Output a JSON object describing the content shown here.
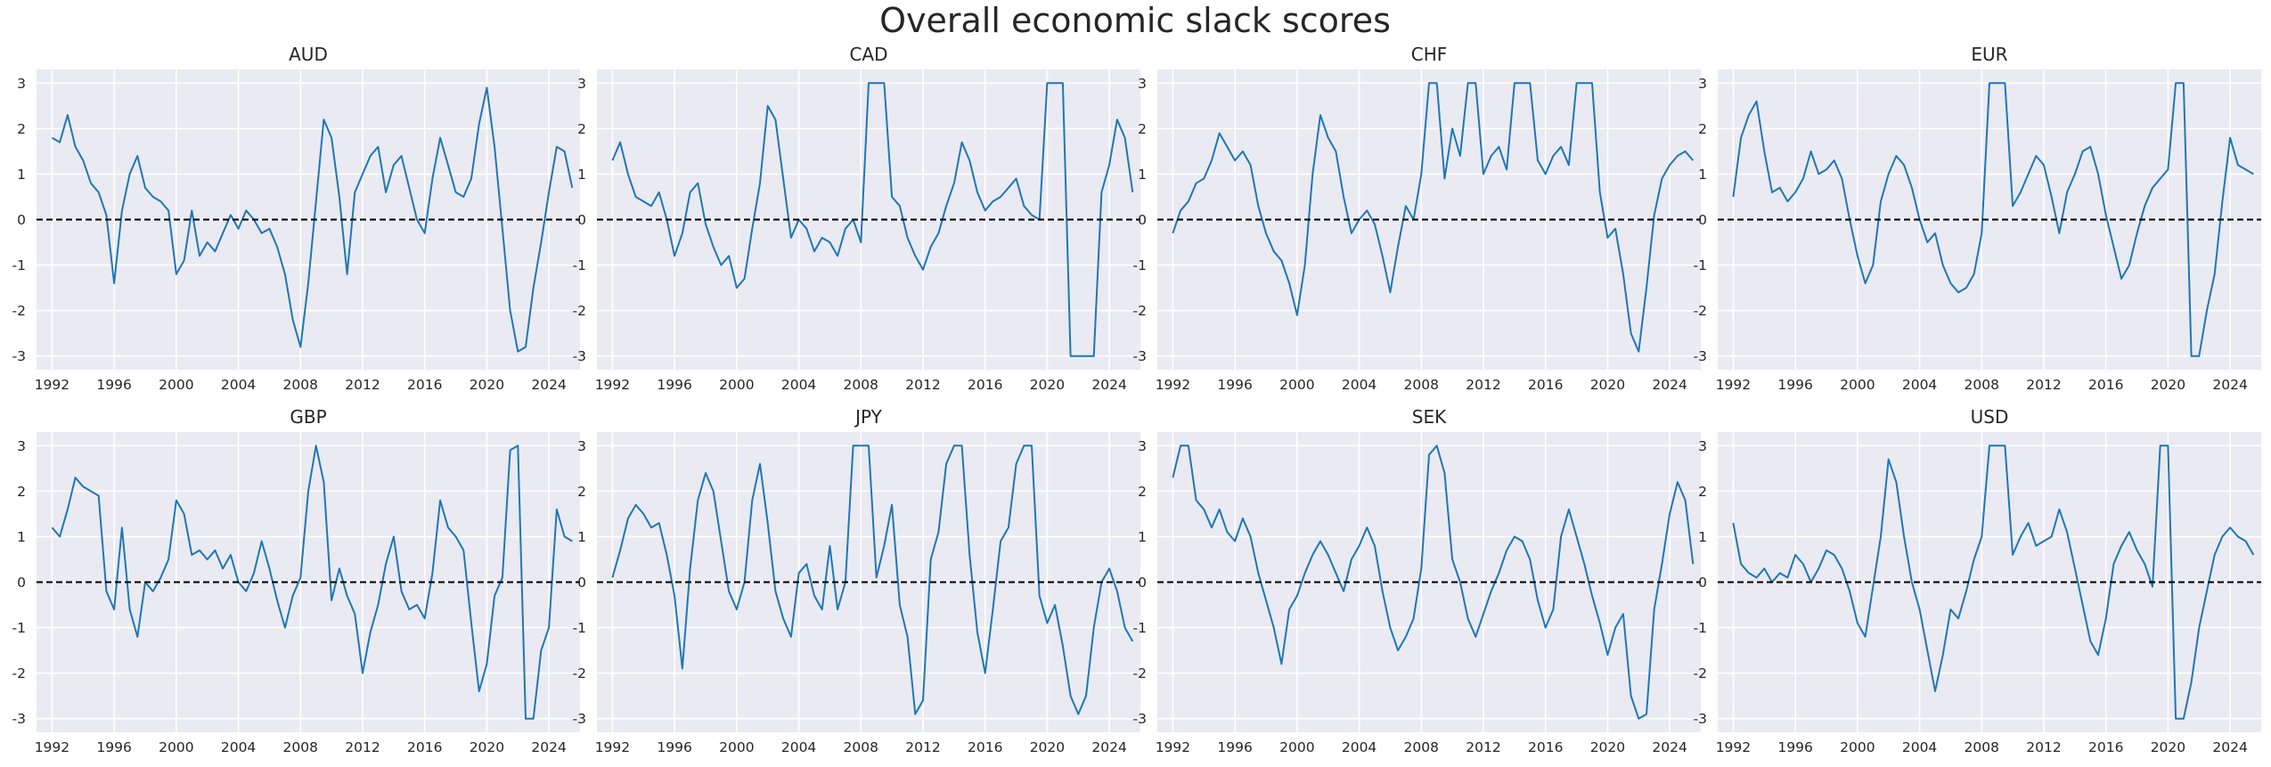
{
  "chart_data": {
    "type": "line",
    "title": "Overall economic slack scores",
    "layout": "2x4 small multiples, shared y range",
    "ylim": [
      -3.3,
      3.3
    ],
    "yticks": [
      -3,
      -2,
      -1,
      0,
      1,
      2,
      3
    ],
    "xlim": [
      1991.0,
      2026.0
    ],
    "xticks": [
      1992,
      1996,
      2000,
      2004,
      2008,
      2012,
      2016,
      2020,
      2024
    ],
    "grid": true,
    "reference_line": {
      "y": 0,
      "style": "dashed",
      "color": "#000000"
    },
    "line_color": "#1f77b4",
    "panel_background": "#eaeaf2",
    "panels": [
      {
        "title": "AUD",
        "x": [
          1992.0,
          1992.5,
          1993.0,
          1993.5,
          1994.0,
          1994.5,
          1995.0,
          1995.5,
          1996.0,
          1996.5,
          1997.0,
          1997.5,
          1998.0,
          1998.5,
          1999.0,
          1999.5,
          2000.0,
          2000.5,
          2001.0,
          2001.5,
          2002.0,
          2002.5,
          2003.0,
          2003.5,
          2004.0,
          2004.5,
          2005.0,
          2005.5,
          2006.0,
          2006.5,
          2007.0,
          2007.5,
          2008.0,
          2008.5,
          2009.0,
          2009.5,
          2010.0,
          2010.5,
          2011.0,
          2011.5,
          2012.0,
          2012.5,
          2013.0,
          2013.5,
          2014.0,
          2014.5,
          2015.0,
          2015.5,
          2016.0,
          2016.5,
          2017.0,
          2017.5,
          2018.0,
          2018.5,
          2019.0,
          2019.5,
          2020.0,
          2020.5,
          2021.0,
          2021.5,
          2022.0,
          2022.5,
          2023.0,
          2023.5,
          2024.0,
          2024.5,
          2025.0,
          2025.5
        ],
        "y": [
          1.8,
          1.7,
          2.3,
          1.6,
          1.3,
          0.8,
          0.6,
          0.1,
          -1.4,
          0.2,
          1.0,
          1.4,
          0.7,
          0.5,
          0.4,
          0.2,
          -1.2,
          -0.9,
          0.2,
          -0.8,
          -0.5,
          -0.7,
          -0.3,
          0.1,
          -0.2,
          0.2,
          0.0,
          -0.3,
          -0.2,
          -0.6,
          -1.2,
          -2.2,
          -2.8,
          -1.4,
          0.4,
          2.2,
          1.8,
          0.5,
          -1.2,
          0.6,
          1.0,
          1.4,
          1.6,
          0.6,
          1.2,
          1.4,
          0.7,
          0.0,
          -0.3,
          0.9,
          1.8,
          1.2,
          0.6,
          0.5,
          0.9,
          2.1,
          2.9,
          1.6,
          -0.2,
          -2.0,
          -2.9,
          -2.8,
          -1.5,
          -0.5,
          0.6,
          1.6,
          1.5,
          0.7
        ]
      },
      {
        "title": "CAD",
        "x": [
          1992.0,
          1992.5,
          1993.0,
          1993.5,
          1994.0,
          1994.5,
          1995.0,
          1995.5,
          1996.0,
          1996.5,
          1997.0,
          1997.5,
          1998.0,
          1998.5,
          1999.0,
          1999.5,
          2000.0,
          2000.5,
          2001.0,
          2001.5,
          2002.0,
          2002.5,
          2003.0,
          2003.5,
          2004.0,
          2004.5,
          2005.0,
          2005.5,
          2006.0,
          2006.5,
          2007.0,
          2007.5,
          2008.0,
          2008.5,
          2009.0,
          2009.5,
          2010.0,
          2010.5,
          2011.0,
          2011.5,
          2012.0,
          2012.5,
          2013.0,
          2013.5,
          2014.0,
          2014.5,
          2015.0,
          2015.5,
          2016.0,
          2016.5,
          2017.0,
          2017.5,
          2018.0,
          2018.5,
          2019.0,
          2019.5,
          2020.0,
          2020.5,
          2021.0,
          2021.5,
          2022.0,
          2022.5,
          2023.0,
          2023.5,
          2024.0,
          2024.5,
          2025.0,
          2025.5
        ],
        "y": [
          1.3,
          1.7,
          1.0,
          0.5,
          0.4,
          0.3,
          0.6,
          0.0,
          -0.8,
          -0.3,
          0.6,
          0.8,
          -0.1,
          -0.6,
          -1.0,
          -0.8,
          -1.5,
          -1.3,
          -0.2,
          0.8,
          2.5,
          2.2,
          0.9,
          -0.4,
          0.0,
          -0.2,
          -0.7,
          -0.4,
          -0.5,
          -0.8,
          -0.2,
          0.0,
          -0.5,
          3.0,
          3.0,
          3.0,
          0.5,
          0.3,
          -0.4,
          -0.8,
          -1.1,
          -0.6,
          -0.3,
          0.3,
          0.8,
          1.7,
          1.3,
          0.6,
          0.2,
          0.4,
          0.5,
          0.7,
          0.9,
          0.3,
          0.1,
          0.0,
          3.0,
          3.0,
          3.0,
          -3.0,
          -3.0,
          -3.0,
          -3.0,
          0.6,
          1.2,
          2.2,
          1.8,
          0.6
        ]
      },
      {
        "title": "CHF",
        "x": [
          1992.0,
          1992.5,
          1993.0,
          1993.5,
          1994.0,
          1994.5,
          1995.0,
          1995.5,
          1996.0,
          1996.5,
          1997.0,
          1997.5,
          1998.0,
          1998.5,
          1999.0,
          1999.5,
          2000.0,
          2000.5,
          2001.0,
          2001.5,
          2002.0,
          2002.5,
          2003.0,
          2003.5,
          2004.0,
          2004.5,
          2005.0,
          2005.5,
          2006.0,
          2006.5,
          2007.0,
          2007.5,
          2008.0,
          2008.5,
          2009.0,
          2009.5,
          2010.0,
          2010.5,
          2011.0,
          2011.5,
          2012.0,
          2012.5,
          2013.0,
          2013.5,
          2014.0,
          2014.5,
          2015.0,
          2015.5,
          2016.0,
          2016.5,
          2017.0,
          2017.5,
          2018.0,
          2018.5,
          2019.0,
          2019.5,
          2020.0,
          2020.5,
          2021.0,
          2021.5,
          2022.0,
          2022.5,
          2023.0,
          2023.5,
          2024.0,
          2024.5,
          2025.0,
          2025.5
        ],
        "y": [
          -0.3,
          0.2,
          0.4,
          0.8,
          0.9,
          1.3,
          1.9,
          1.6,
          1.3,
          1.5,
          1.2,
          0.3,
          -0.3,
          -0.7,
          -0.9,
          -1.4,
          -2.1,
          -1.0,
          1.0,
          2.3,
          1.8,
          1.5,
          0.5,
          -0.3,
          0.0,
          0.2,
          -0.1,
          -0.8,
          -1.6,
          -0.6,
          0.3,
          0.0,
          1.0,
          3.0,
          3.0,
          0.9,
          2.0,
          1.4,
          3.0,
          3.0,
          1.0,
          1.4,
          1.6,
          1.1,
          3.0,
          3.0,
          3.0,
          1.3,
          1.0,
          1.4,
          1.6,
          1.2,
          3.0,
          3.0,
          3.0,
          0.6,
          -0.4,
          -0.2,
          -1.2,
          -2.5,
          -2.9,
          -1.5,
          0.1,
          0.9,
          1.2,
          1.4,
          1.5,
          1.3
        ]
      },
      {
        "title": "EUR",
        "x": [
          1992.0,
          1992.5,
          1993.0,
          1993.5,
          1994.0,
          1994.5,
          1995.0,
          1995.5,
          1996.0,
          1996.5,
          1997.0,
          1997.5,
          1998.0,
          1998.5,
          1999.0,
          1999.5,
          2000.0,
          2000.5,
          2001.0,
          2001.5,
          2002.0,
          2002.5,
          2003.0,
          2003.5,
          2004.0,
          2004.5,
          2005.0,
          2005.5,
          2006.0,
          2006.5,
          2007.0,
          2007.5,
          2008.0,
          2008.5,
          2009.0,
          2009.5,
          2010.0,
          2010.5,
          2011.0,
          2011.5,
          2012.0,
          2012.5,
          2013.0,
          2013.5,
          2014.0,
          2014.5,
          2015.0,
          2015.5,
          2016.0,
          2016.5,
          2017.0,
          2017.5,
          2018.0,
          2018.5,
          2019.0,
          2019.5,
          2020.0,
          2020.5,
          2021.0,
          2021.5,
          2022.0,
          2022.5,
          2023.0,
          2023.5,
          2024.0,
          2024.5,
          2025.0,
          2025.5
        ],
        "y": [
          0.5,
          1.8,
          2.3,
          2.6,
          1.5,
          0.6,
          0.7,
          0.4,
          0.6,
          0.9,
          1.5,
          1.0,
          1.1,
          1.3,
          0.9,
          0.0,
          -0.8,
          -1.4,
          -1.0,
          0.4,
          1.0,
          1.4,
          1.2,
          0.7,
          0.0,
          -0.5,
          -0.3,
          -1.0,
          -1.4,
          -1.6,
          -1.5,
          -1.2,
          -0.3,
          3.0,
          3.0,
          3.0,
          0.3,
          0.6,
          1.0,
          1.4,
          1.2,
          0.5,
          -0.3,
          0.6,
          1.0,
          1.5,
          1.6,
          1.0,
          0.1,
          -0.6,
          -1.3,
          -1.0,
          -0.3,
          0.3,
          0.7,
          0.9,
          1.1,
          3.0,
          3.0,
          -3.0,
          -3.0,
          -2.0,
          -1.2,
          0.4,
          1.8,
          1.2,
          1.1,
          1.0
        ]
      },
      {
        "title": "GBP",
        "x": [
          1992.0,
          1992.5,
          1993.0,
          1993.5,
          1994.0,
          1994.5,
          1995.0,
          1995.5,
          1996.0,
          1996.5,
          1997.0,
          1997.5,
          1998.0,
          1998.5,
          1999.0,
          1999.5,
          2000.0,
          2000.5,
          2001.0,
          2001.5,
          2002.0,
          2002.5,
          2003.0,
          2003.5,
          2004.0,
          2004.5,
          2005.0,
          2005.5,
          2006.0,
          2006.5,
          2007.0,
          2007.5,
          2008.0,
          2008.5,
          2009.0,
          2009.5,
          2010.0,
          2010.5,
          2011.0,
          2011.5,
          2012.0,
          2012.5,
          2013.0,
          2013.5,
          2014.0,
          2014.5,
          2015.0,
          2015.5,
          2016.0,
          2016.5,
          2017.0,
          2017.5,
          2018.0,
          2018.5,
          2019.0,
          2019.5,
          2020.0,
          2020.5,
          2021.0,
          2021.5,
          2022.0,
          2022.5,
          2023.0,
          2023.5,
          2024.0,
          2024.5,
          2025.0,
          2025.5
        ],
        "y": [
          1.2,
          1.0,
          1.6,
          2.3,
          2.1,
          2.0,
          1.9,
          -0.2,
          -0.6,
          1.2,
          -0.6,
          -1.2,
          0.0,
          -0.2,
          0.1,
          0.5,
          1.8,
          1.5,
          0.6,
          0.7,
          0.5,
          0.7,
          0.3,
          0.6,
          0.0,
          -0.2,
          0.2,
          0.9,
          0.3,
          -0.4,
          -1.0,
          -0.3,
          0.1,
          2.0,
          3.0,
          2.2,
          -0.4,
          0.3,
          -0.3,
          -0.7,
          -2.0,
          -1.1,
          -0.5,
          0.4,
          1.0,
          -0.2,
          -0.6,
          -0.5,
          -0.8,
          0.2,
          1.8,
          1.2,
          1.0,
          0.7,
          -0.9,
          -2.4,
          -1.8,
          -0.3,
          0.1,
          2.9,
          3.0,
          -3.0,
          -3.0,
          -1.5,
          -1.0,
          1.6,
          1.0,
          0.9
        ]
      },
      {
        "title": "JPY",
        "x": [
          1992.0,
          1992.5,
          1993.0,
          1993.5,
          1994.0,
          1994.5,
          1995.0,
          1995.5,
          1996.0,
          1996.5,
          1997.0,
          1997.5,
          1998.0,
          1998.5,
          1999.0,
          1999.5,
          2000.0,
          2000.5,
          2001.0,
          2001.5,
          2002.0,
          2002.5,
          2003.0,
          2003.5,
          2004.0,
          2004.5,
          2005.0,
          2005.5,
          2006.0,
          2006.5,
          2007.0,
          2007.5,
          2008.0,
          2008.5,
          2009.0,
          2009.5,
          2010.0,
          2010.5,
          2011.0,
          2011.5,
          2012.0,
          2012.5,
          2013.0,
          2013.5,
          2014.0,
          2014.5,
          2015.0,
          2015.5,
          2016.0,
          2016.5,
          2017.0,
          2017.5,
          2018.0,
          2018.5,
          2019.0,
          2019.5,
          2020.0,
          2020.5,
          2021.0,
          2021.5,
          2022.0,
          2022.5,
          2023.0,
          2023.5,
          2024.0,
          2024.5,
          2025.0,
          2025.5
        ],
        "y": [
          0.1,
          0.7,
          1.4,
          1.7,
          1.5,
          1.2,
          1.3,
          0.6,
          -0.3,
          -1.9,
          0.3,
          1.8,
          2.4,
          2.0,
          0.9,
          -0.2,
          -0.6,
          0.0,
          1.8,
          2.6,
          1.3,
          -0.2,
          -0.8,
          -1.2,
          0.2,
          0.4,
          -0.3,
          -0.6,
          0.8,
          -0.6,
          0.0,
          3.0,
          3.0,
          3.0,
          0.1,
          0.8,
          1.7,
          -0.5,
          -1.2,
          -2.9,
          -2.6,
          0.5,
          1.1,
          2.6,
          3.0,
          3.0,
          0.6,
          -1.1,
          -2.0,
          -0.6,
          0.9,
          1.2,
          2.6,
          3.0,
          3.0,
          -0.3,
          -0.9,
          -0.5,
          -1.4,
          -2.5,
          -2.9,
          -2.5,
          -1.0,
          0.0,
          0.3,
          -0.2,
          -1.0,
          -1.3
        ]
      },
      {
        "title": "SEK",
        "x": [
          1992.0,
          1992.5,
          1993.0,
          1993.5,
          1994.0,
          1994.5,
          1995.0,
          1995.5,
          1996.0,
          1996.5,
          1997.0,
          1997.5,
          1998.0,
          1998.5,
          1999.0,
          1999.5,
          2000.0,
          2000.5,
          2001.0,
          2001.5,
          2002.0,
          2002.5,
          2003.0,
          2003.5,
          2004.0,
          2004.5,
          2005.0,
          2005.5,
          2006.0,
          2006.5,
          2007.0,
          2007.5,
          2008.0,
          2008.5,
          2009.0,
          2009.5,
          2010.0,
          2010.5,
          2011.0,
          2011.5,
          2012.0,
          2012.5,
          2013.0,
          2013.5,
          2014.0,
          2014.5,
          2015.0,
          2015.5,
          2016.0,
          2016.5,
          2017.0,
          2017.5,
          2018.0,
          2018.5,
          2019.0,
          2019.5,
          2020.0,
          2020.5,
          2021.0,
          2021.5,
          2022.0,
          2022.5,
          2023.0,
          2023.5,
          2024.0,
          2024.5,
          2025.0,
          2025.5
        ],
        "y": [
          2.3,
          3.0,
          3.0,
          1.8,
          1.6,
          1.2,
          1.6,
          1.1,
          0.9,
          1.4,
          1.0,
          0.2,
          -0.4,
          -1.0,
          -1.8,
          -0.6,
          -0.3,
          0.2,
          0.6,
          0.9,
          0.6,
          0.2,
          -0.2,
          0.5,
          0.8,
          1.2,
          0.8,
          -0.2,
          -1.0,
          -1.5,
          -1.2,
          -0.8,
          0.3,
          2.8,
          3.0,
          2.4,
          0.5,
          0.0,
          -0.8,
          -1.2,
          -0.7,
          -0.2,
          0.2,
          0.7,
          1.0,
          0.9,
          0.5,
          -0.4,
          -1.0,
          -0.6,
          1.0,
          1.6,
          1.0,
          0.4,
          -0.3,
          -0.9,
          -1.6,
          -1.0,
          -0.7,
          -2.5,
          -3.0,
          -2.9,
          -0.6,
          0.4,
          1.5,
          2.2,
          1.8,
          0.4
        ]
      },
      {
        "title": "USD",
        "x": [
          1992.0,
          1992.5,
          1993.0,
          1993.5,
          1994.0,
          1994.5,
          1995.0,
          1995.5,
          1996.0,
          1996.5,
          1997.0,
          1997.5,
          1998.0,
          1998.5,
          1999.0,
          1999.5,
          2000.0,
          2000.5,
          2001.0,
          2001.5,
          2002.0,
          2002.5,
          2003.0,
          2003.5,
          2004.0,
          2004.5,
          2005.0,
          2005.5,
          2006.0,
          2006.5,
          2007.0,
          2007.5,
          2008.0,
          2008.5,
          2009.0,
          2009.5,
          2010.0,
          2010.5,
          2011.0,
          2011.5,
          2012.0,
          2012.5,
          2013.0,
          2013.5,
          2014.0,
          2014.5,
          2015.0,
          2015.5,
          2016.0,
          2016.5,
          2017.0,
          2017.5,
          2018.0,
          2018.5,
          2019.0,
          2019.5,
          2020.0,
          2020.5,
          2021.0,
          2021.5,
          2022.0,
          2022.5,
          2023.0,
          2023.5,
          2024.0,
          2024.5,
          2025.0,
          2025.5
        ],
        "y": [
          1.3,
          0.4,
          0.2,
          0.1,
          0.3,
          0.0,
          0.2,
          0.1,
          0.6,
          0.4,
          0.0,
          0.3,
          0.7,
          0.6,
          0.3,
          -0.2,
          -0.9,
          -1.2,
          -0.1,
          1.0,
          2.7,
          2.2,
          1.0,
          0.0,
          -0.6,
          -1.5,
          -2.4,
          -1.6,
          -0.6,
          -0.8,
          -0.2,
          0.5,
          1.0,
          3.0,
          3.0,
          3.0,
          0.6,
          1.0,
          1.3,
          0.8,
          0.9,
          1.0,
          1.6,
          1.1,
          0.3,
          -0.5,
          -1.3,
          -1.6,
          -0.8,
          0.4,
          0.8,
          1.1,
          0.7,
          0.4,
          -0.1,
          3.0,
          3.0,
          -3.0,
          -3.0,
          -2.2,
          -1.0,
          -0.2,
          0.6,
          1.0,
          1.2,
          1.0,
          0.9,
          0.6
        ]
      }
    ]
  }
}
